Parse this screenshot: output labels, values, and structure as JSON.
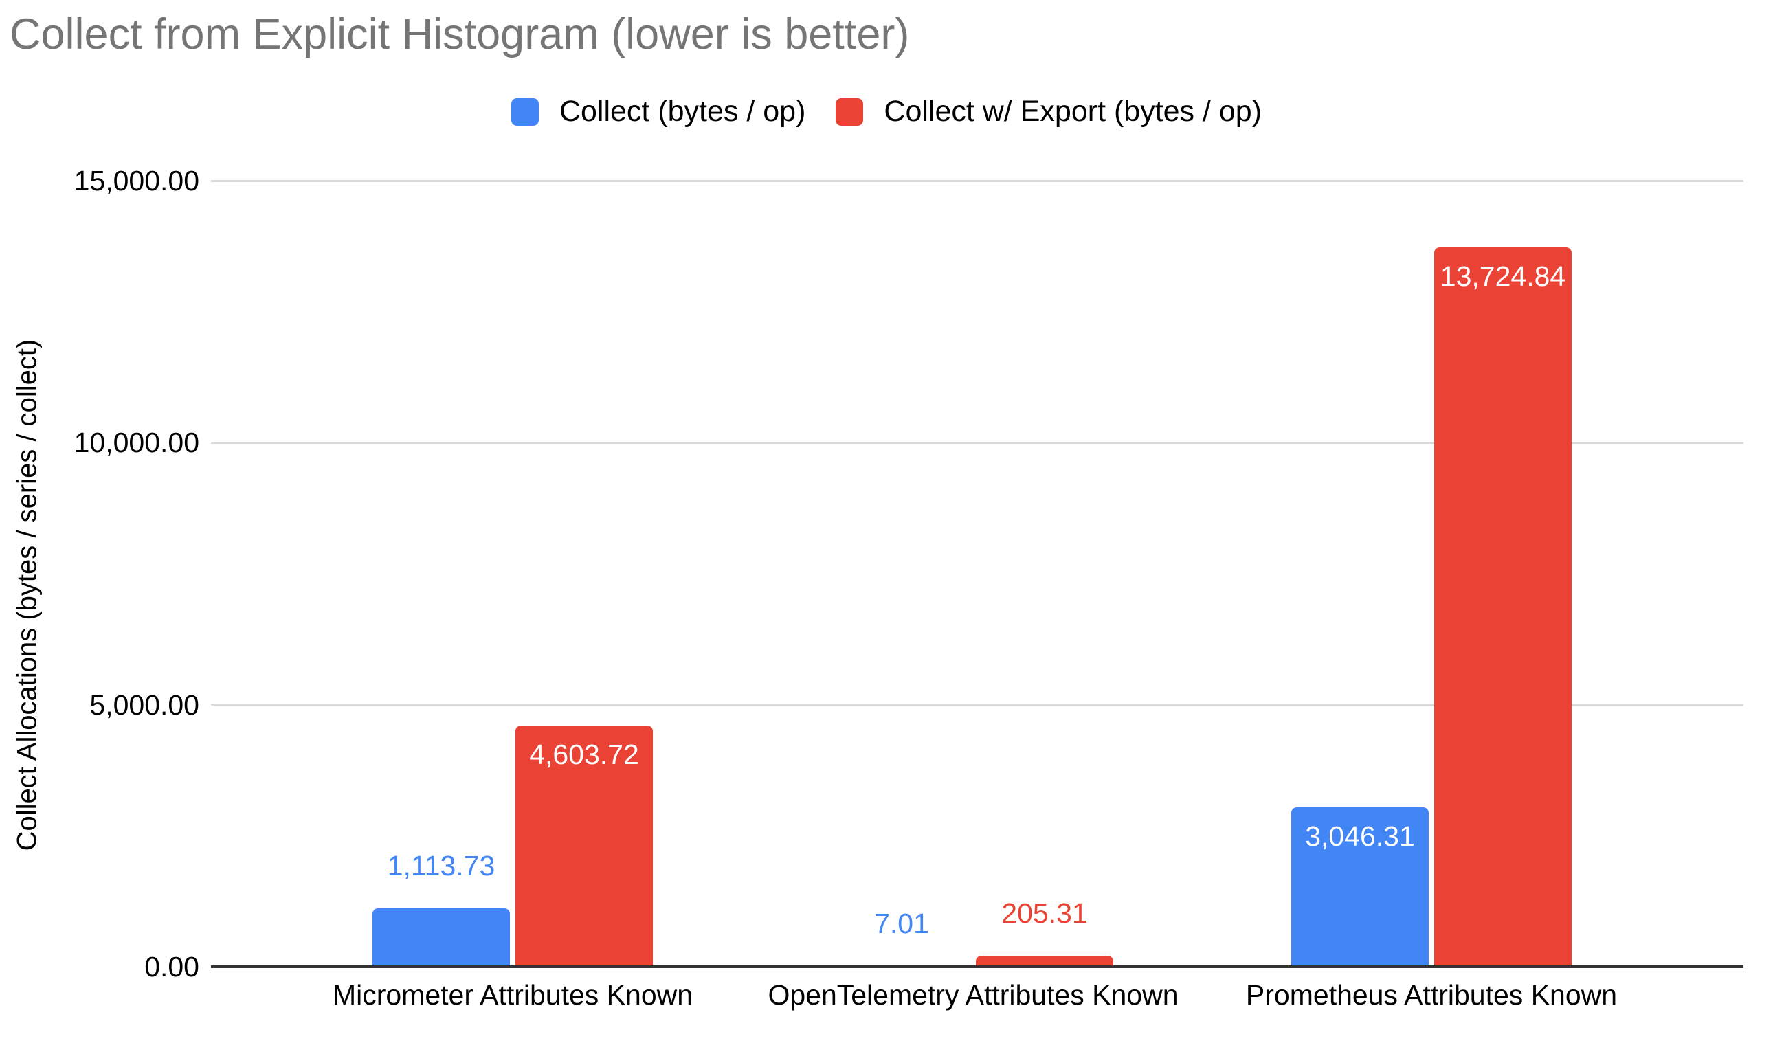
{
  "chart_data": {
    "type": "bar",
    "title": "Collect from Explicit Histogram (lower is better)",
    "title_color": "#757575",
    "ylabel": "Collect Allocations (bytes / series / collect)",
    "xlabel": "",
    "categories": [
      "Micrometer Attributes Known",
      "OpenTelemetry Attributes Known",
      "Prometheus Attributes Known"
    ],
    "series": [
      {
        "name": "Collect (bytes / op)",
        "color": "#4285F4",
        "values": [
          1113.73,
          7.01,
          3046.31
        ],
        "labels": [
          "1,113.73",
          "7.01",
          "3,046.31"
        ]
      },
      {
        "name": "Collect w/ Export (bytes / op)",
        "color": "#EA4335",
        "values": [
          4603.72,
          205.31,
          13724.84
        ],
        "labels": [
          "4,603.72",
          "205.31",
          "13,724.84"
        ]
      }
    ],
    "ylim": [
      0,
      15000
    ],
    "y_ticks": [
      {
        "value": 0,
        "label": "0.00"
      },
      {
        "value": 5000,
        "label": "5,000.00"
      },
      {
        "value": 10000,
        "label": "10,000.00"
      },
      {
        "value": 15000,
        "label": "15,000.00"
      }
    ],
    "grid": true,
    "gridline_color": "#d9d9d9",
    "axis_line_color": "#333333",
    "inside_label_color": "#ffffff",
    "legend_position": "top"
  }
}
